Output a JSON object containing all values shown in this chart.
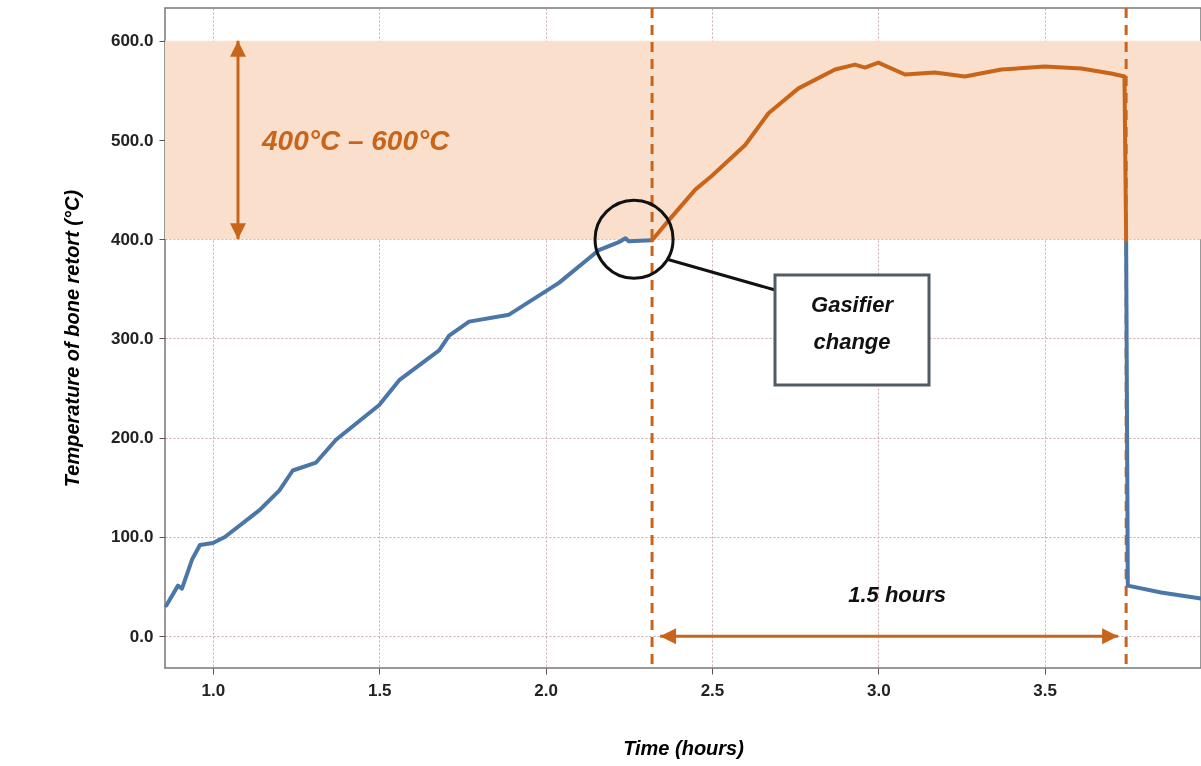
{
  "chart_data": {
    "type": "line",
    "xlabel": "Time (hours)",
    "ylabel": "Temperature of bone retort (°C)",
    "xlim": [
      0.856,
      3.97
    ],
    "ylim": [
      -32,
      633
    ],
    "xticks": [
      {
        "value": 1,
        "label": "1.0"
      },
      {
        "value": 1.5,
        "label": "1.5"
      },
      {
        "value": 2,
        "label": "2.0"
      },
      {
        "value": 2.5,
        "label": "2.5"
      },
      {
        "value": 3,
        "label": "3.0"
      },
      {
        "value": 3.5,
        "label": "3.5"
      }
    ],
    "yticks": [
      {
        "value": 0,
        "label": "0.0"
      },
      {
        "value": 100,
        "label": "100.0"
      },
      {
        "value": 200,
        "label": "200.0"
      },
      {
        "value": 300,
        "label": "300.0"
      },
      {
        "value": 400,
        "label": "400.0"
      },
      {
        "value": 500,
        "label": "500.0"
      },
      {
        "value": 600,
        "label": "600.0"
      }
    ],
    "grid": true,
    "series": [
      {
        "color": "#4a76a8",
        "x": [
          0.86,
          0.895,
          0.907,
          0.937,
          0.961,
          1.0,
          1.036,
          1.14,
          1.2,
          1.24,
          1.31,
          1.37,
          1.5,
          1.56,
          1.68,
          1.71,
          1.77,
          1.89,
          2.04,
          2.16,
          2.22,
          2.24,
          2.25,
          2.32,
          null,
          3.745,
          3.75,
          3.85,
          3.97
        ],
        "values": [
          31,
          51,
          48,
          77,
          92,
          94,
          100,
          127,
          147,
          167,
          175,
          198,
          233,
          258,
          288,
          303,
          317,
          324,
          356,
          389,
          397,
          401,
          398,
          399,
          null,
          399,
          51,
          44,
          38
        ]
      },
      {
        "color": "#c8651b",
        "x": [
          2.32,
          2.37,
          2.45,
          2.5,
          2.6,
          2.67,
          2.76,
          2.87,
          2.93,
          2.96,
          3.0,
          3.08,
          3.17,
          3.26,
          3.37,
          3.5,
          3.61,
          3.7,
          3.74,
          3.745
        ],
        "values": [
          399,
          419,
          450,
          464,
          495,
          527,
          552,
          571,
          576,
          573,
          578,
          566,
          568,
          564,
          571,
          574,
          572,
          567,
          564,
          399
        ]
      }
    ],
    "bands": [
      {
        "axis": "y",
        "from": 400,
        "to": 600,
        "label": "400°C – 600°C",
        "color": "#f9dfcc"
      }
    ],
    "ref_lines": [
      {
        "axis": "x",
        "value": 2.32,
        "color": "#c8651b",
        "line_style": "dashed"
      },
      {
        "axis": "x",
        "value": 3.745,
        "color": "#c8651b",
        "line_style": "dashed"
      }
    ],
    "annotations": [
      "Gasifier change",
      "1.5 hours"
    ]
  }
}
